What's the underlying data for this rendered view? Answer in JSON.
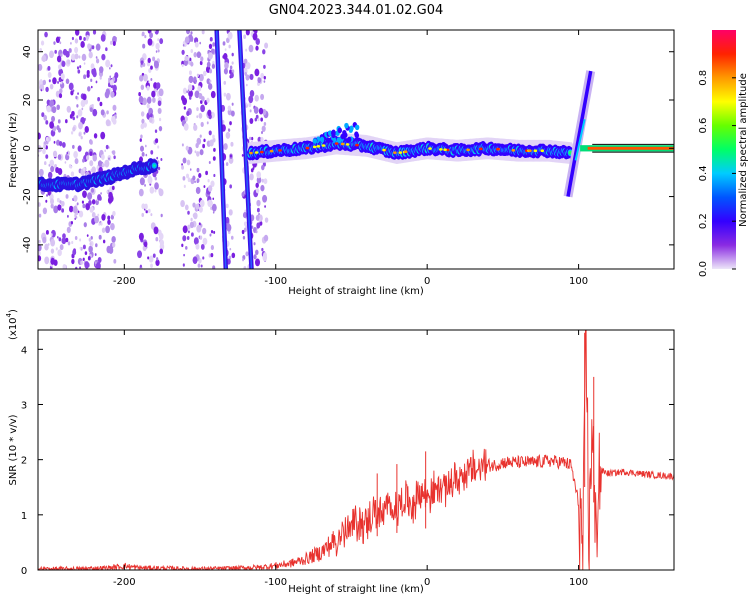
{
  "figure_title": "GN04.2023.344.01.02.G04",
  "chart_data": [
    {
      "type": "heatmap",
      "title": "",
      "xlabel": "Height of straight line (km)",
      "ylabel": "Frequency (Hz)",
      "xlim": [
        -257,
        163
      ],
      "ylim": [
        -50,
        49
      ],
      "x_ticks": [
        -200,
        -100,
        0,
        100
      ],
      "y_ticks": [
        40,
        20,
        0,
        -20,
        -40
      ],
      "colorbar": {
        "label": "Normalized spectral amplitude",
        "range": [
          0,
          1
        ],
        "ticks": [
          0.0,
          0.2,
          0.4,
          0.6,
          0.8
        ],
        "colors": [
          "#ece6f8",
          "#8a2be2",
          "#3300ff",
          "#0055ff",
          "#00ccff",
          "#00ff66",
          "#66ff00",
          "#ffff00",
          "#ff9900",
          "#ff2200",
          "#ff0066"
        ]
      },
      "features": {
        "noise_regions_x": [
          [
            -257,
            -205
          ],
          [
            -190,
            -175
          ],
          [
            -162,
            -140
          ],
          [
            -135,
            -128
          ],
          [
            -122,
            -106
          ]
        ],
        "linear_streaks": [
          {
            "x": [
              -139,
              -133
            ],
            "y": [
              -50,
              49
            ]
          },
          {
            "x": [
              -124,
              -116
            ],
            "y": [
              -50,
              49
            ]
          }
        ],
        "left_trace": {
          "x": [
            -257,
            -232,
            -210,
            -195,
            -180
          ],
          "y": [
            -15,
            -15,
            -12,
            -9,
            -7
          ]
        },
        "main_trace": {
          "x": [
            -117,
            -100,
            -80,
            -60,
            -40,
            -20,
            0,
            20,
            40,
            60,
            80,
            95
          ],
          "y": [
            -2,
            -1,
            0,
            2,
            1,
            -2,
            0,
            -1,
            0,
            -1,
            -1,
            -2
          ]
        },
        "bump_near": {
          "x": [
            -75,
            -45
          ],
          "y": [
            3,
            13
          ]
        },
        "spike_near_100": {
          "x": [
            93,
            108
          ],
          "y": [
            -20,
            32
          ]
        },
        "right_trace": {
          "x": [
            101,
            163
          ],
          "y": [
            0,
            0
          ]
        }
      }
    },
    {
      "type": "line",
      "title": "",
      "xlabel": "Height of straight line (km)",
      "ylabel": "SNR (10 * v/v)",
      "y_multiplier": "(x10",
      "y_multiplier_exp": "4",
      "y_multiplier_close": ")",
      "xlim": [
        -257,
        163
      ],
      "ylim": [
        0,
        4.35
      ],
      "x_ticks": [
        -200,
        -100,
        0,
        100
      ],
      "y_ticks": [
        0,
        1,
        2,
        3,
        4
      ],
      "series": [
        {
          "color": "#e8322e",
          "x": [
            -257,
            -230,
            -210,
            -200,
            -190,
            -170,
            -150,
            -130,
            -110,
            -100,
            -90,
            -80,
            -70,
            -60,
            -50,
            -45,
            -40,
            -35,
            -30,
            -25,
            -20,
            -15,
            -10,
            -5,
            0,
            5,
            10,
            15,
            20,
            25,
            30,
            35,
            40,
            45,
            50,
            60,
            70,
            80,
            90,
            95,
            100,
            103,
            105,
            107,
            109,
            111,
            113,
            115,
            120,
            130,
            140,
            150,
            163
          ],
          "y": [
            0.02,
            0.02,
            0.04,
            0.07,
            0.04,
            0.03,
            0.02,
            0.03,
            0.05,
            0.08,
            0.12,
            0.2,
            0.32,
            0.55,
            0.75,
            0.9,
            0.8,
            1.1,
            0.95,
            1.15,
            1.1,
            1.3,
            1.2,
            1.4,
            1.35,
            1.45,
            1.5,
            1.55,
            1.65,
            1.75,
            1.8,
            1.85,
            1.9,
            1.9,
            1.95,
            1.95,
            1.95,
            1.98,
            1.95,
            1.9,
            1.2,
            0.3,
            4.1,
            0.2,
            3.1,
            0.25,
            1.8,
            1.8,
            1.75,
            1.78,
            1.75,
            1.72,
            1.7
          ]
        }
      ],
      "spikes": [
        {
          "x": -33,
          "y": 1.75
        },
        {
          "x": -20,
          "y": 1.92
        },
        {
          "x": -1,
          "y": 2.15
        },
        {
          "x": 104,
          "y": 4.3
        },
        {
          "x": 110,
          "y": 3.5
        }
      ]
    }
  ]
}
